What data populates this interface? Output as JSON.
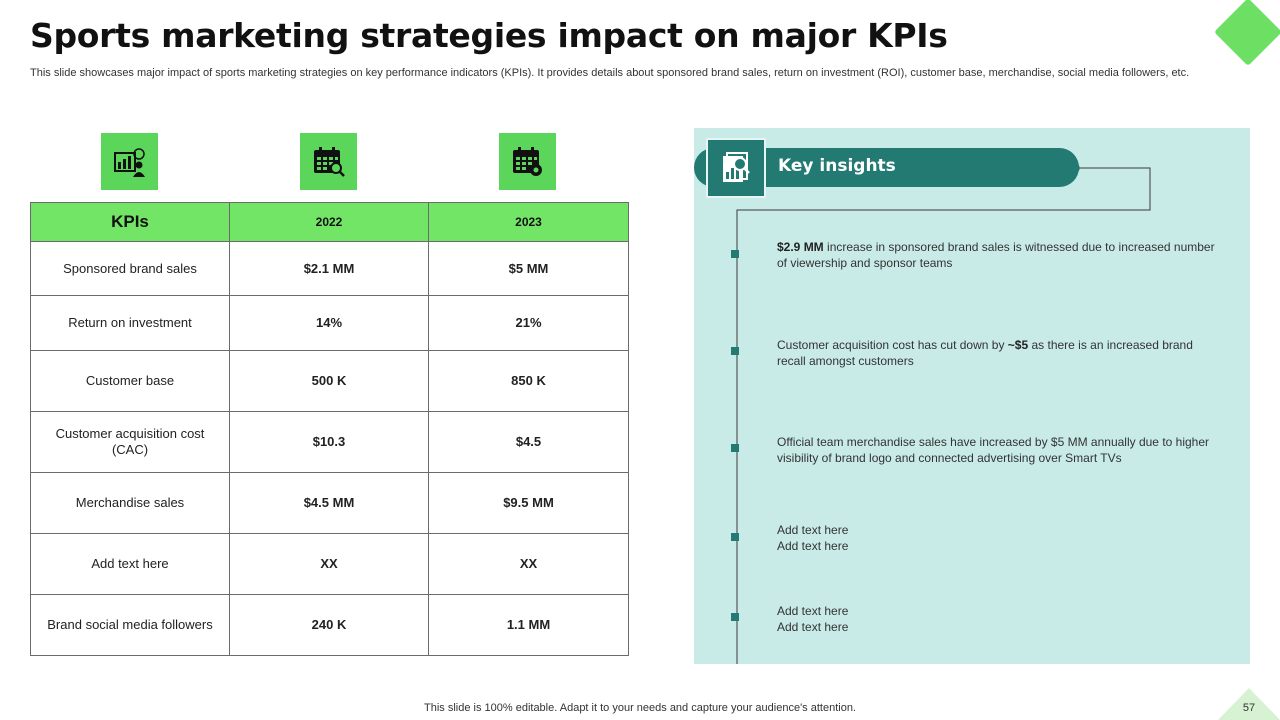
{
  "title": "Sports marketing strategies impact on major KPIs",
  "subtitle": "This slide showcases major impact of sports marketing strategies on key performance indicators (KPIs). It provides details about sponsored brand sales, return on investment (ROI), customer base, merchandise, social media followers, etc.",
  "icons": [
    "kpi-presentation-icon",
    "calendar-search-icon",
    "calendar-settings-icon"
  ],
  "table": {
    "headers": [
      "KPIs",
      "2022",
      "2023"
    ],
    "rows": [
      {
        "kpi": "Sponsored  brand sales",
        "y2022": "$2.1 MM",
        "y2023": "$5 MM"
      },
      {
        "kpi": "Return on investment",
        "y2022": "14%",
        "y2023": "21%"
      },
      {
        "kpi": "Customer base",
        "y2022": "500  K",
        "y2023": "850  K"
      },
      {
        "kpi": "Customer acquisition cost (CAC)",
        "y2022": "$10.3",
        "y2023": "$4.5"
      },
      {
        "kpi": "Merchandise  sales",
        "y2022": "$4.5 MM",
        "y2023": "$9.5 MM"
      },
      {
        "kpi": "Add text here",
        "y2022": "XX",
        "y2023": "XX"
      },
      {
        "kpi": "Brand social media followers",
        "y2022": "240  K",
        "y2023": "1.1 MM"
      }
    ]
  },
  "insights": {
    "title": "Key insights",
    "items": [
      {
        "bold": "$2.9 MM",
        "text": " increase  in  sponsored  brand  sales  is  witnessed  due to increased number of viewership  and sponsor teams"
      },
      {
        "pre": "Customer  acquisition  cost  has  cut  down  by  ",
        "bold": "~$5",
        "text": " as  there  is  an increased  brand  recall  amongst  customers"
      },
      {
        "text": "Official  team  merchandise  sales  have  increased  by  $5  MM  annually  due  to higher  visibility  of  brand  logo  and  connected  advertising  over  Smart  TVs"
      },
      {
        "line1": "Add text here",
        "line2": "Add text here"
      },
      {
        "line1": "Add text here",
        "line2": "Add text here"
      }
    ]
  },
  "footer": "This slide is 100% editable. Adapt it to your needs and capture your audience's attention.",
  "page_number": "57",
  "colors": {
    "accent_green": "#72e566",
    "teal": "#237a72",
    "panel": "#c8ebe8"
  }
}
